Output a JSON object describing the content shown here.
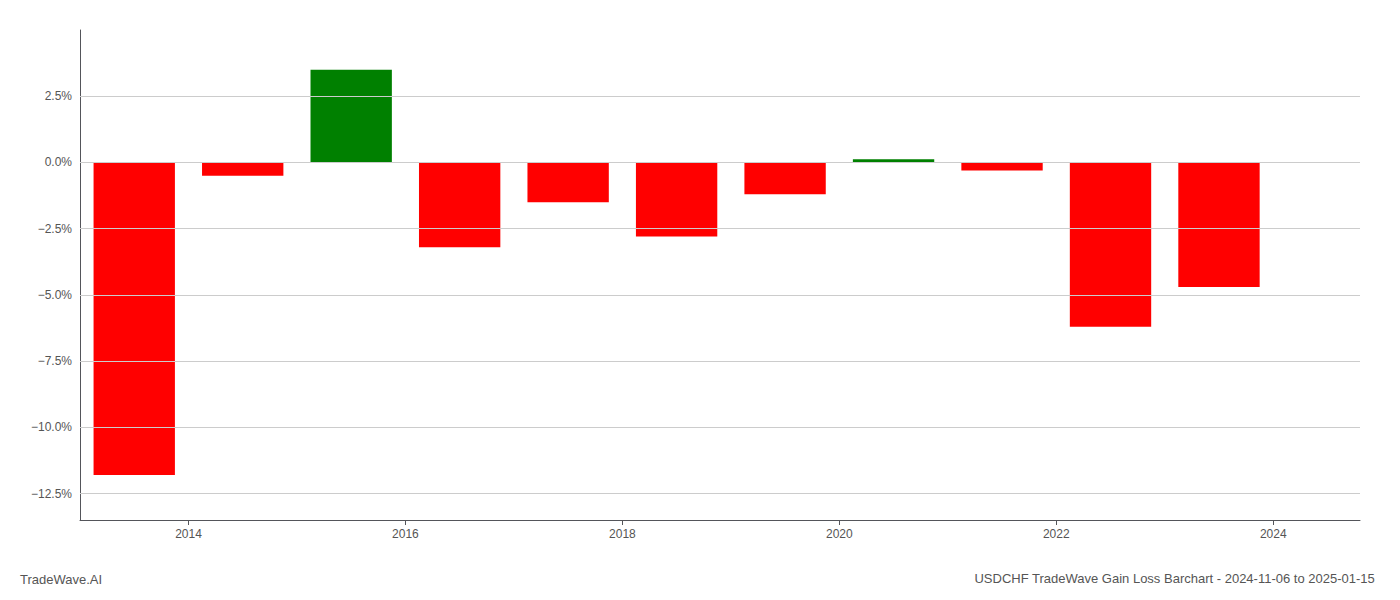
{
  "chart_data": {
    "type": "bar",
    "title": "USDCHF TradeWave Gain Loss Barchart - 2024-11-06 to 2025-01-15",
    "annotations": [
      "TradeWave.AI"
    ],
    "x": [
      2013.5,
      2014.5,
      2015.5,
      2016.5,
      2017.5,
      2018.5,
      2019.5,
      2020.5,
      2021.5,
      2022.5,
      2023.5
    ],
    "values": [
      -11.8,
      -0.5,
      3.5,
      -3.2,
      -1.5,
      -2.8,
      -1.2,
      0.12,
      -0.3,
      -6.2,
      -4.7
    ],
    "colors": [
      "#ff0000",
      "#ff0000",
      "#008000",
      "#ff0000",
      "#ff0000",
      "#ff0000",
      "#ff0000",
      "#008000",
      "#ff0000",
      "#ff0000",
      "#ff0000"
    ],
    "xlim": [
      2013.0,
      2024.8
    ],
    "xticks": [
      2014,
      2016,
      2018,
      2020,
      2022,
      2024
    ],
    "ylim": [
      -13.5,
      5.0
    ],
    "yticks": [
      {
        "value": -12.5,
        "label": "−12.5%"
      },
      {
        "value": -10.0,
        "label": "−10.0%"
      },
      {
        "value": -7.5,
        "label": "−7.5%"
      },
      {
        "value": -5.0,
        "label": "−5.0%"
      },
      {
        "value": -2.5,
        "label": "−2.5%"
      },
      {
        "value": 0.0,
        "label": "0.0%"
      },
      {
        "value": 2.5,
        "label": "2.5%"
      }
    ],
    "grid": true
  }
}
